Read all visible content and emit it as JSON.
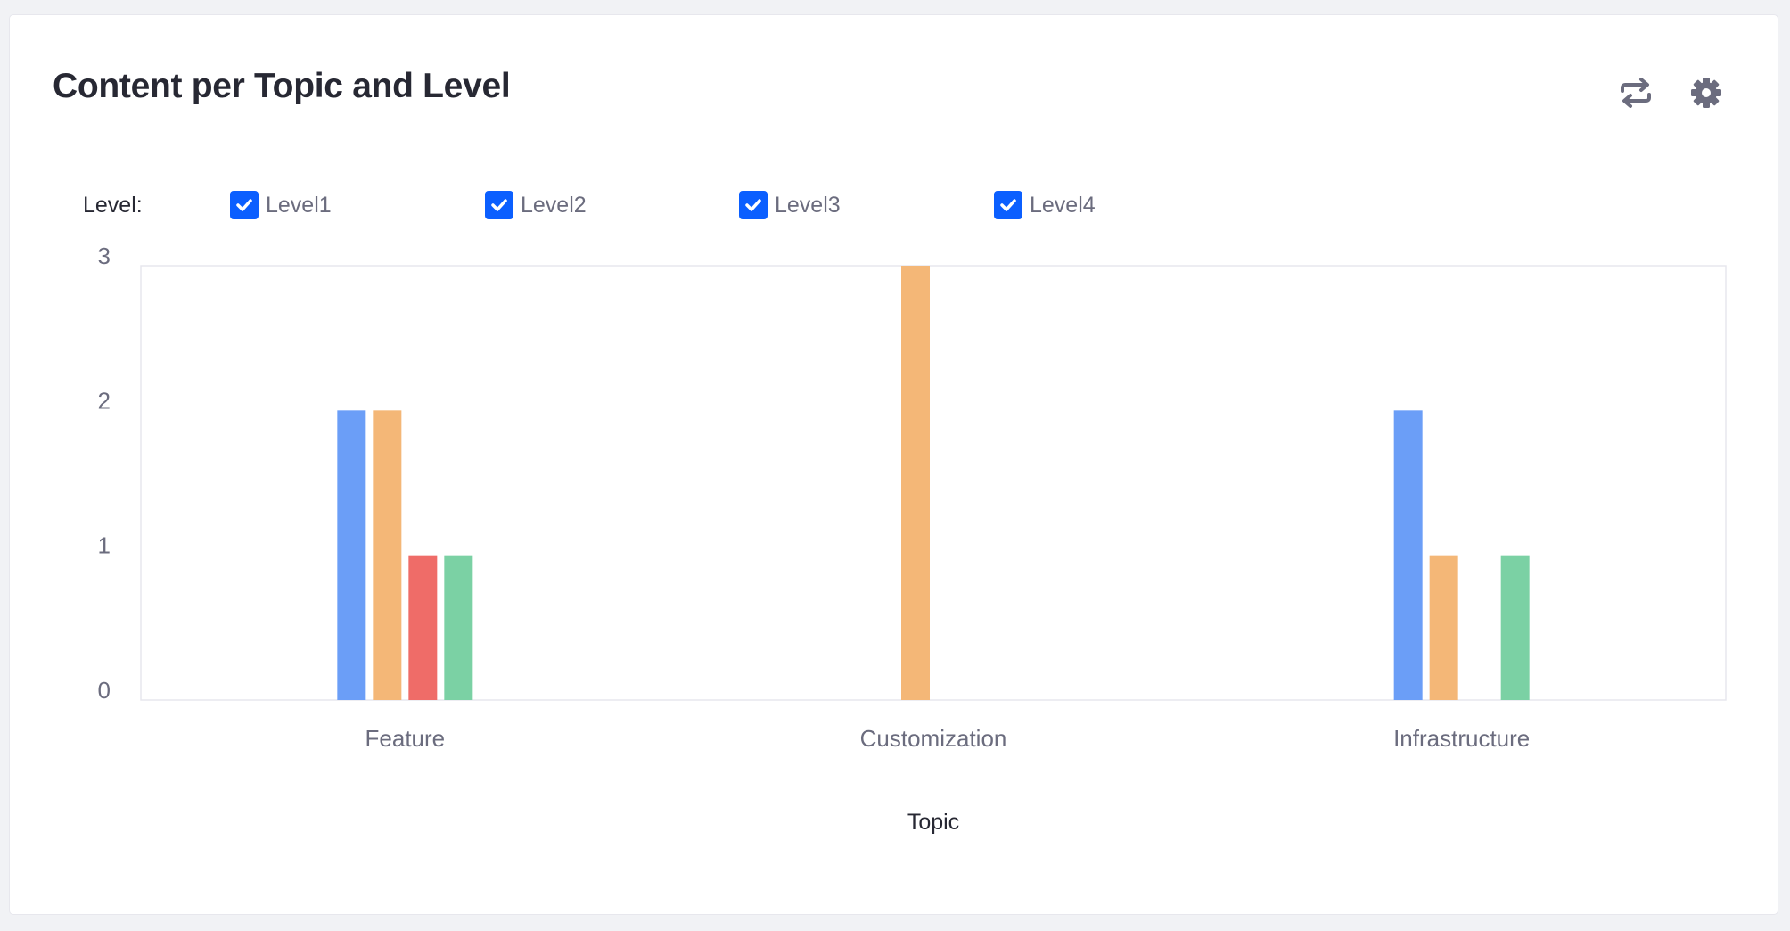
{
  "card": {
    "title": "Content per Topic and Level",
    "actions": [
      {
        "icon": "swap-arrows-icon"
      },
      {
        "icon": "gear-icon"
      }
    ]
  },
  "filter": {
    "label": "Level:",
    "options": [
      {
        "label": "Level1",
        "checked": true
      },
      {
        "label": "Level2",
        "checked": true
      },
      {
        "label": "Level3",
        "checked": true
      },
      {
        "label": "Level4",
        "checked": true
      }
    ]
  },
  "colors": {
    "checkbox": "#0b5fff",
    "Level1": "#6b9ef7",
    "Level2": "#f4b777",
    "Level3": "#ef6c68",
    "Level4": "#7bd1a4"
  },
  "chart_data": {
    "type": "bar",
    "categories": [
      "Feature",
      "Customization",
      "Infrastructure"
    ],
    "series": [
      {
        "name": "Level1",
        "values": [
          2,
          0,
          2
        ]
      },
      {
        "name": "Level2",
        "values": [
          2,
          3,
          1
        ]
      },
      {
        "name": "Level3",
        "values": [
          1,
          0,
          0
        ]
      },
      {
        "name": "Level4",
        "values": [
          1,
          0,
          1
        ]
      }
    ],
    "xlabel": "Topic",
    "ylabel": "",
    "ylim": [
      0,
      3
    ],
    "yticks": [
      0,
      1,
      2,
      3
    ],
    "grid": false,
    "legend": "top-left"
  }
}
